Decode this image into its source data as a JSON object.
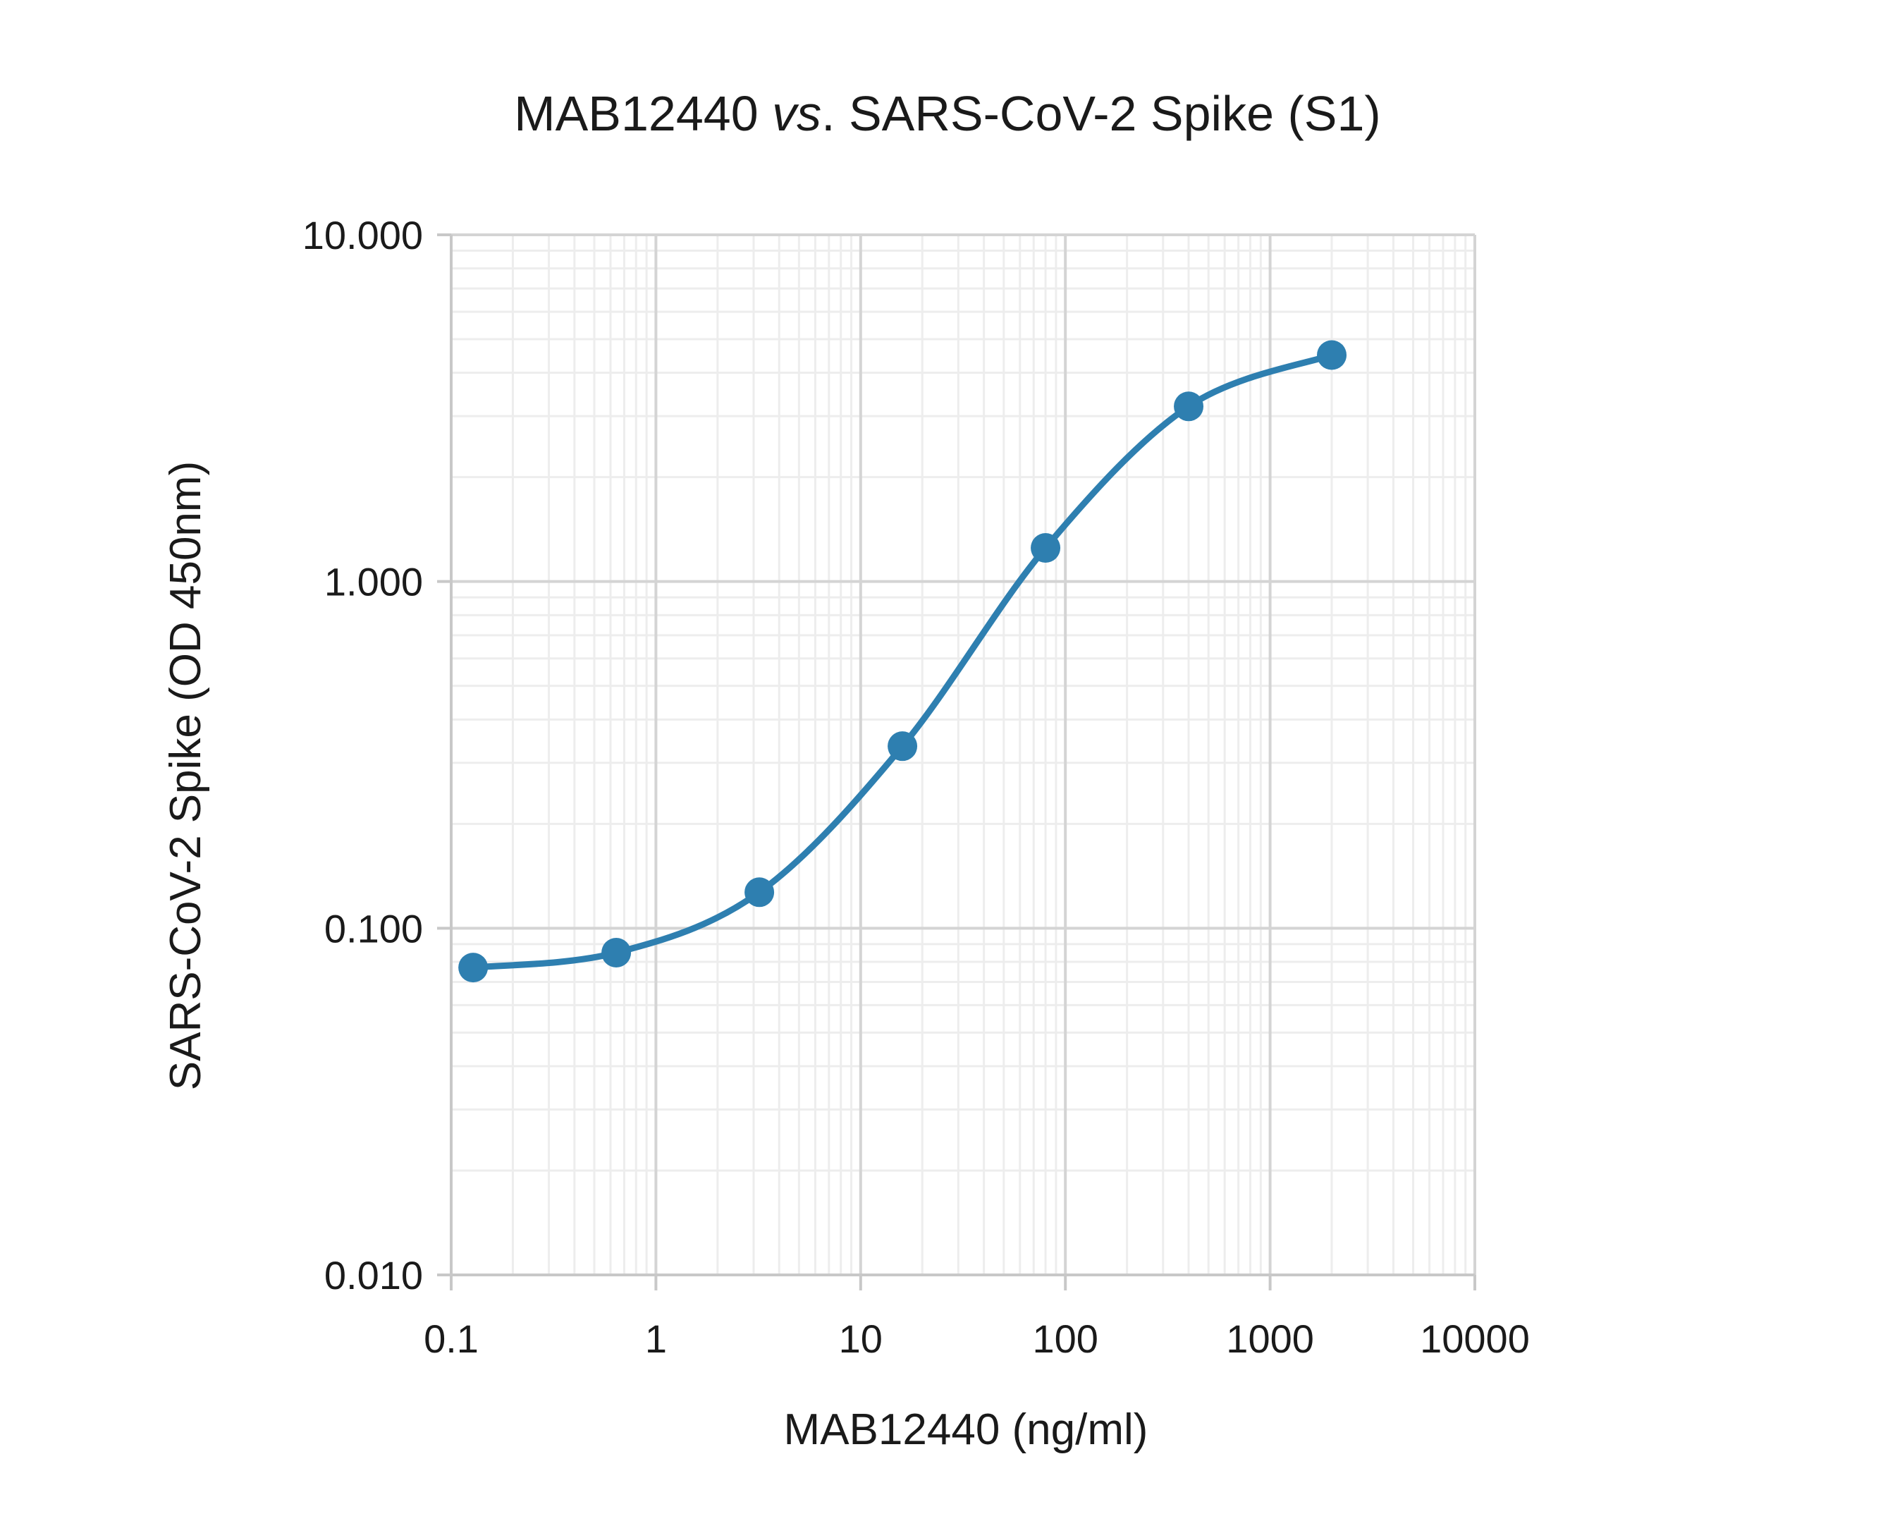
{
  "chart_data": {
    "type": "scatter",
    "title": "MAB12440 vs. SARS-CoV-2 Spike (S1)",
    "title_parts": {
      "pre": "MAB12440 ",
      "italic": "vs",
      "post": ". SARS-CoV-2 Spike (S1)"
    },
    "xlabel": "MAB12440 (ng/ml)",
    "ylabel": "SARS-CoV-2 Spike (OD 450nm)",
    "x_scale": "log",
    "y_scale": "log",
    "xlim": [
      0.1,
      10000
    ],
    "ylim": [
      0.01,
      10
    ],
    "x_ticks": [
      0.1,
      1,
      10,
      100,
      1000,
      10000
    ],
    "x_tick_labels": [
      "0.1",
      "1",
      "10",
      "100",
      "1000",
      "10000"
    ],
    "y_ticks": [
      0.01,
      0.1,
      1,
      10
    ],
    "y_tick_labels": [
      "0.010",
      "0.100",
      "1.000",
      "10.000"
    ],
    "grid": true,
    "minor_grid": true,
    "series": [
      {
        "smooth_line": true,
        "color": "#2e7fb0",
        "points": [
          {
            "x": 0.128,
            "y": 0.077
          },
          {
            "x": 0.64,
            "y": 0.085
          },
          {
            "x": 3.2,
            "y": 0.127
          },
          {
            "x": 16,
            "y": 0.335
          },
          {
            "x": 80,
            "y": 1.25
          },
          {
            "x": 400,
            "y": 3.2
          },
          {
            "x": 2000,
            "y": 4.5
          }
        ]
      }
    ]
  }
}
